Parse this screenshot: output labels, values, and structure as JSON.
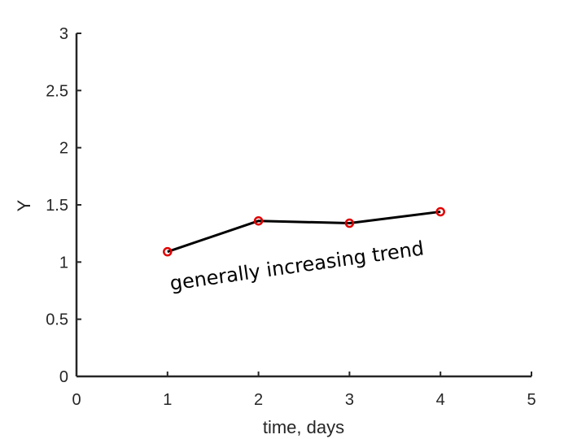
{
  "chart_data": {
    "type": "line",
    "x": [
      1,
      2,
      3,
      4
    ],
    "series": [
      {
        "values": [
          1.09,
          1.36,
          1.34,
          1.44
        ]
      }
    ],
    "xlabel": "time, days",
    "ylabel": "Y",
    "xlim": [
      0,
      5
    ],
    "ylim": [
      0,
      3
    ],
    "x_ticks": [
      "0",
      "1",
      "2",
      "3",
      "4",
      "5"
    ],
    "y_ticks": [
      "0",
      "0.5",
      "1",
      "1.5",
      "2",
      "2.5",
      "3"
    ],
    "grid": false,
    "markers": "open circle",
    "annotation": "generally increasing trend"
  },
  "colors": {
    "line": "#000000",
    "marker": "#e00000",
    "axis": "#262626"
  }
}
